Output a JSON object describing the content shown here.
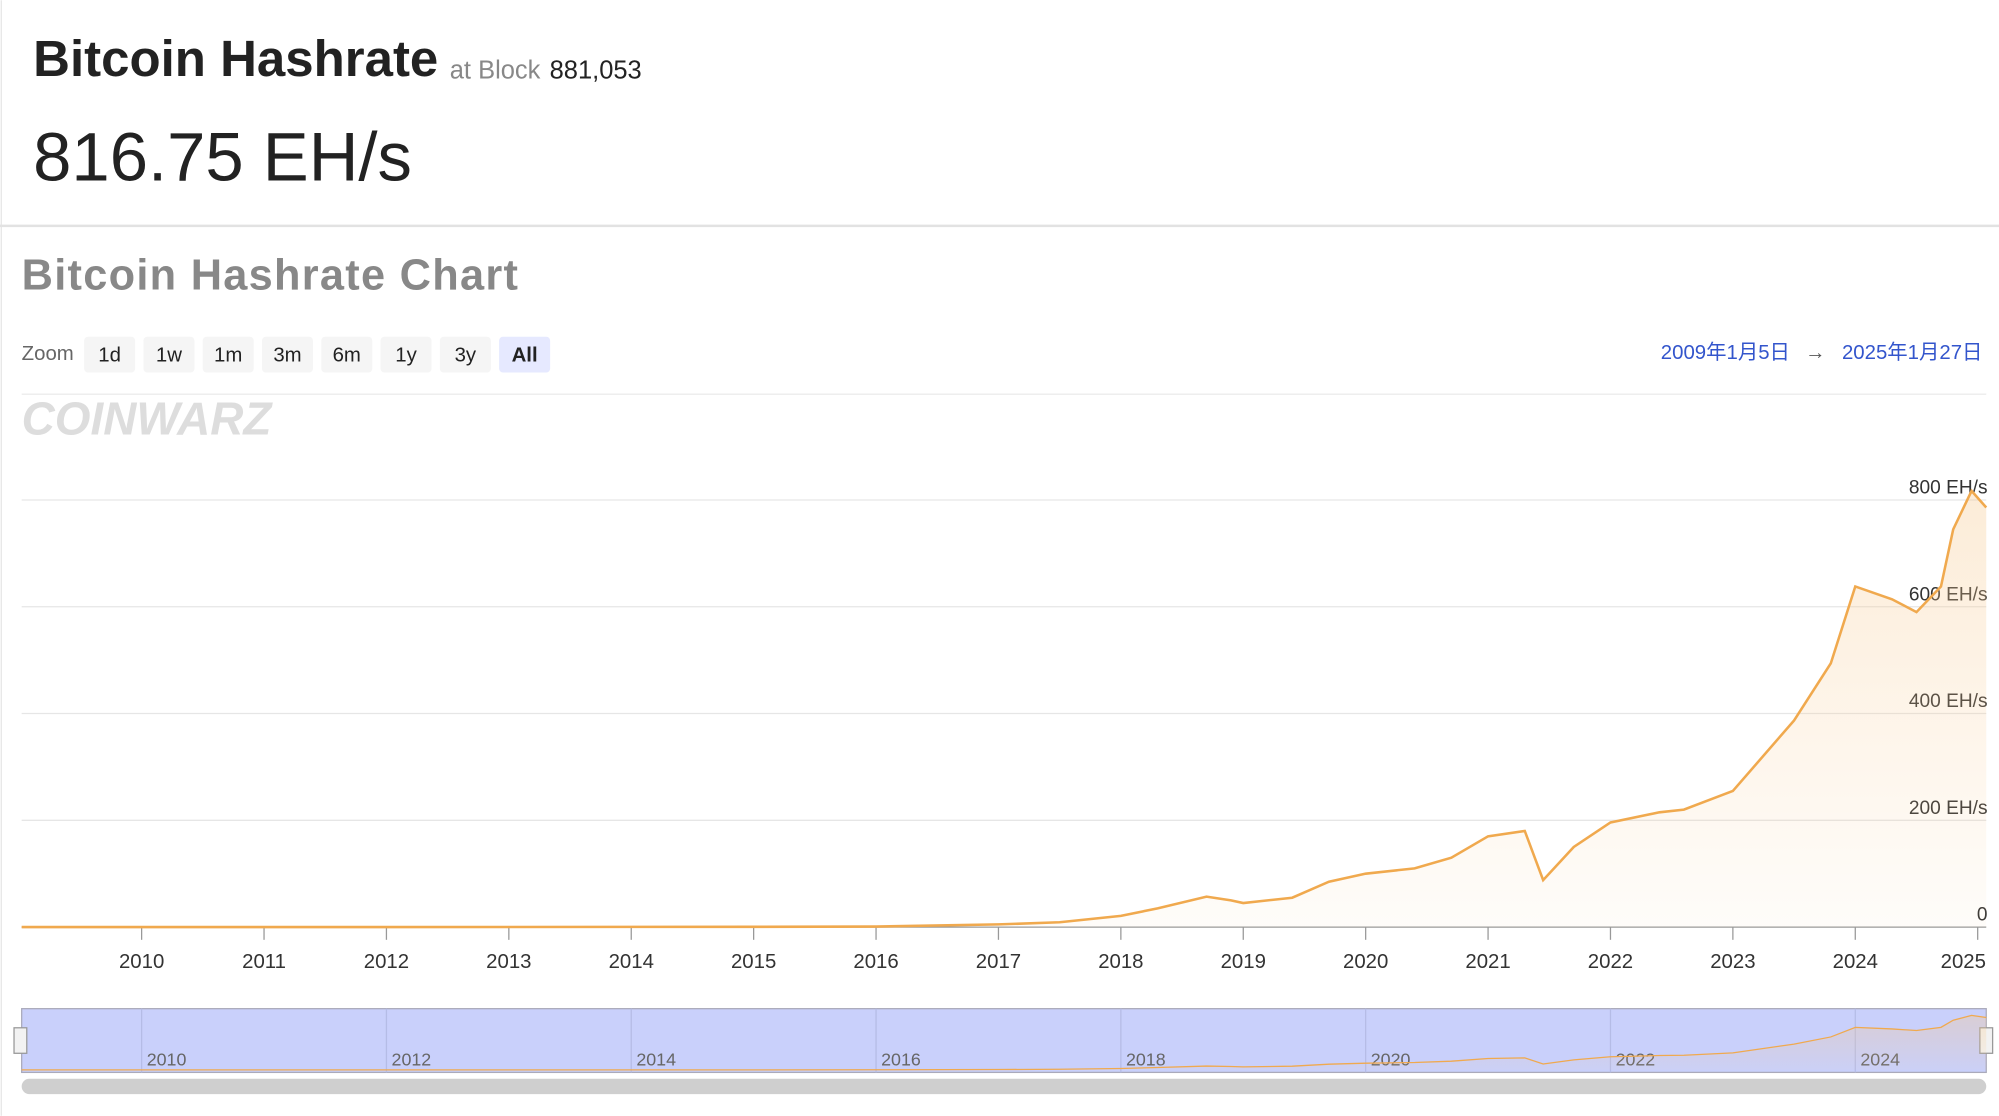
{
  "header": {
    "title": "Bitcoin Hashrate",
    "block_prefix": "at Block",
    "block": "881,053",
    "hashrate": "816.75 EH/s"
  },
  "controls": {
    "zoom_label": "Zoom",
    "buttons": [
      "1d",
      "1w",
      "1m",
      "3m",
      "6m",
      "1y",
      "3y",
      "All"
    ],
    "active": "All",
    "date_from": "2009年1月5日",
    "arrow": "→",
    "date_to": "2025年1月27日"
  },
  "watermark": "COINWARZ",
  "chart_data": {
    "type": "line",
    "title": "Bitcoin Hashrate Chart",
    "x": [
      2009.02,
      2012,
      2015,
      2016,
      2017,
      2017.5,
      2018,
      2018.3,
      2018.7,
      2018.9,
      2019,
      2019.4,
      2019.7,
      2020,
      2020.4,
      2020.7,
      2021,
      2021.3,
      2021.45,
      2021.7,
      2022,
      2022.4,
      2022.6,
      2023,
      2023.5,
      2023.8,
      2024,
      2024.3,
      2024.5,
      2024.7,
      2024.8,
      2024.95,
      2025.07
    ],
    "series": [
      {
        "name": "Hashrate",
        "color": "#f0a94e",
        "values": [
          0,
          0,
          0.5,
          1,
          5,
          9,
          21,
          35,
          57,
          50,
          45,
          55,
          85,
          100,
          110,
          130,
          170,
          180,
          88,
          150,
          196,
          215,
          220,
          255,
          387,
          494,
          638,
          614,
          590,
          638,
          745,
          817,
          786
        ]
      }
    ],
    "xlim": [
      2009.02,
      2025.07
    ],
    "xticks": [
      2010,
      2011,
      2012,
      2013,
      2014,
      2015,
      2016,
      2017,
      2018,
      2019,
      2020,
      2021,
      2022,
      2023,
      2024,
      2025
    ],
    "ylim": [
      0,
      880
    ],
    "yticks": [
      0,
      {
        "value": 200,
        "label": "200 EH/s"
      },
      {
        "value": 400,
        "label": "400 EH/s"
      },
      {
        "value": 600,
        "label": "600 EH/s"
      },
      {
        "value": 800,
        "label": "800 EH/s"
      }
    ],
    "grid": true,
    "navigator_xticks": [
      2010,
      2012,
      2014,
      2016,
      2018,
      2020,
      2022,
      2024
    ]
  }
}
